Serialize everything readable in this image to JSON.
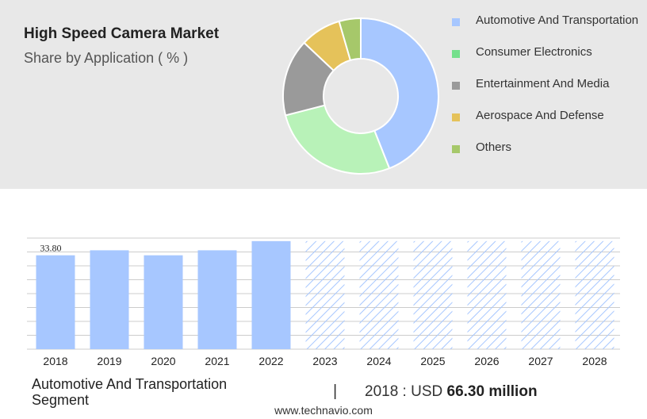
{
  "header": {
    "title": "High Speed Camera Market",
    "subtitle": "Share by Application ( % )"
  },
  "colors": {
    "automotive": "#a7c7ff",
    "consumer": "#b8f2b8",
    "entertainment": "#9a9a9a",
    "aerospace": "#e5c25a",
    "others": "#a6c86a",
    "consumer_swatch": "#74e08c",
    "bar": "#a7c7ff",
    "hatch": "#a7c7ff",
    "grid": "#cccccc"
  },
  "chart_data": [
    {
      "type": "pie",
      "subtype": "donut",
      "legend_position": "right",
      "slices": [
        {
          "name": "Automotive And Transportation",
          "value": 44,
          "color": "#a7c7ff"
        },
        {
          "name": "Consumer Electronics",
          "value": 27,
          "color": "#b8f2b8",
          "legend_color": "#74e08c"
        },
        {
          "name": "Entertainment And Media",
          "value": 16,
          "color": "#9a9a9a"
        },
        {
          "name": "Aerospace And Defense",
          "value": 8.5,
          "color": "#e5c25a"
        },
        {
          "name": "Others",
          "value": 4.5,
          "color": "#a6c86a"
        }
      ]
    },
    {
      "type": "bar",
      "categories": [
        "2018",
        "2019",
        "2020",
        "2021",
        "2022",
        "2023",
        "2024",
        "2025",
        "2026",
        "2027",
        "2028"
      ],
      "values": [
        33.8,
        35.6,
        33.8,
        35.6,
        38.9,
        38.9,
        38.9,
        38.9,
        38.9,
        38.9,
        38.9
      ],
      "forecast_from": "2023",
      "data_labels": {
        "2018": "33.80"
      },
      "ylim": [
        0,
        40
      ],
      "grid": true,
      "xlabel": "",
      "ylabel": ""
    }
  ],
  "footer": {
    "segment": "Automotive And Transportation Segment",
    "separator": "|",
    "value_prefix": "2018 : USD ",
    "value_amount": "66.30 million"
  },
  "source": "www.technavio.com"
}
